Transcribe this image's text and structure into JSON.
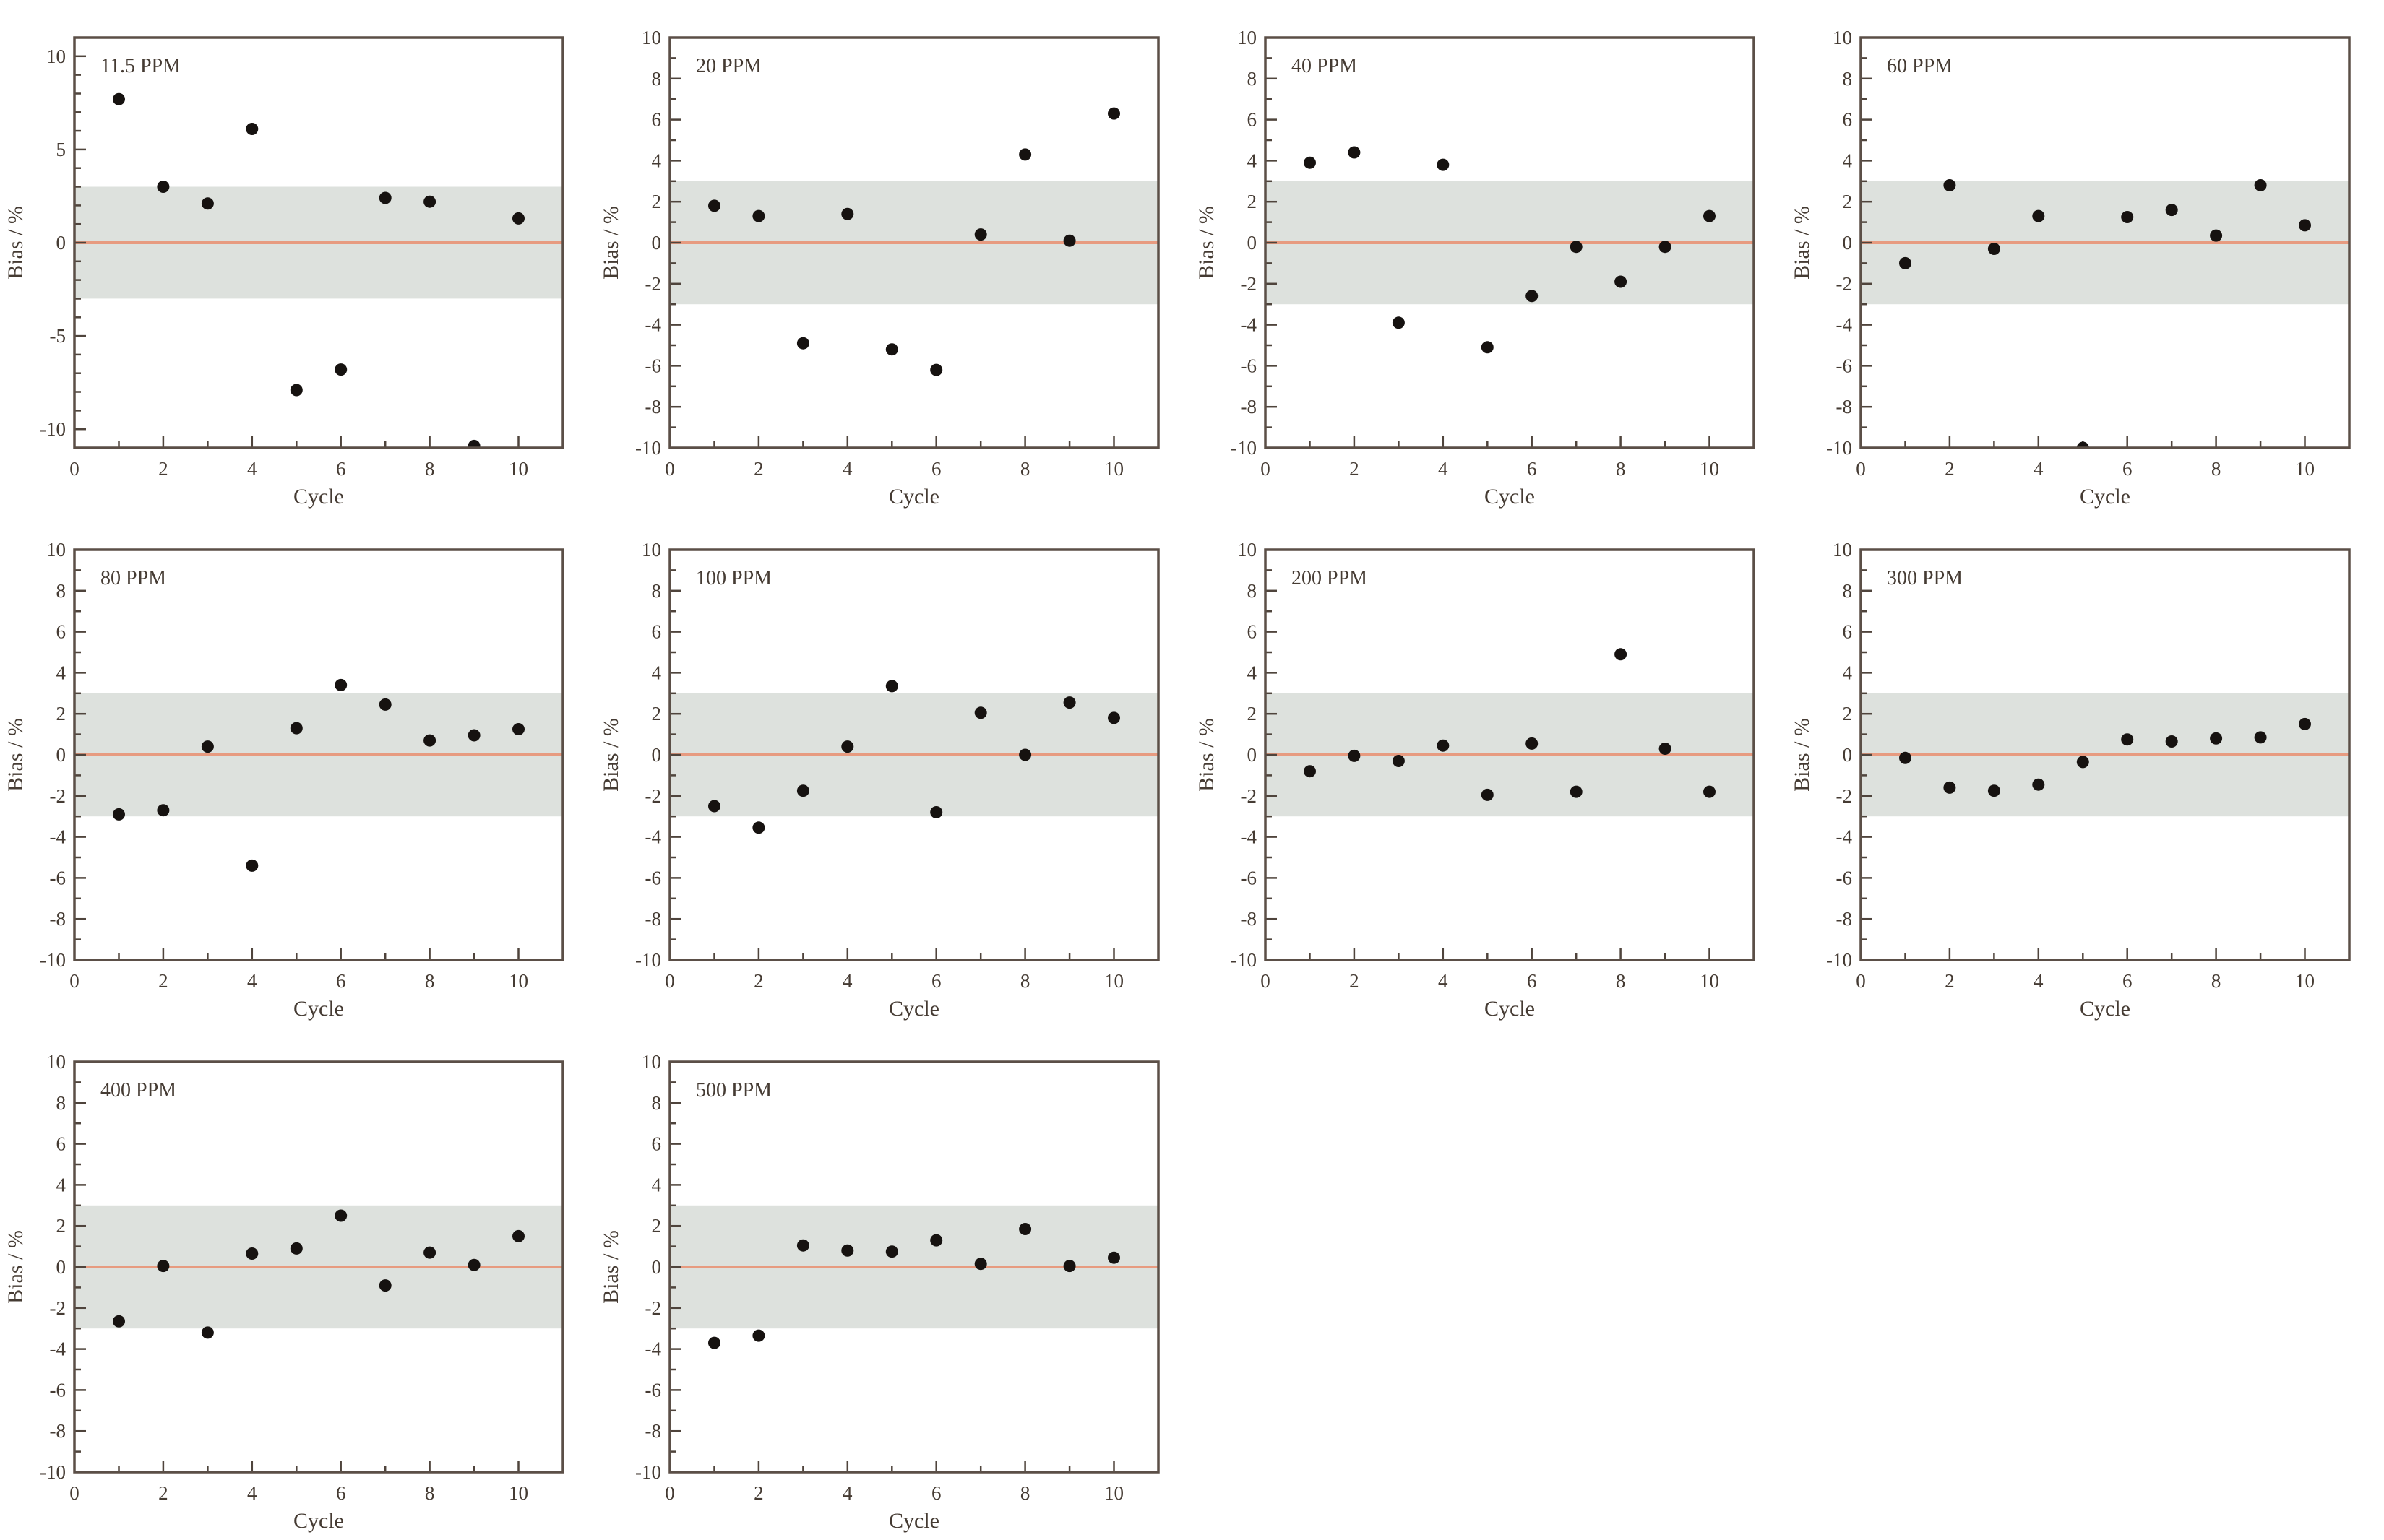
{
  "figure": {
    "name": "bias-vs-cycle-repeatability-figure",
    "xlabel": "Cycle",
    "ylabel": "Bias / %",
    "x_major_ticks": [
      0,
      2,
      4,
      6,
      8,
      10
    ],
    "x_minor_ticks": [
      1,
      3,
      5,
      7,
      9,
      11
    ],
    "xlim": [
      0,
      11
    ]
  },
  "style": {
    "background": "#ffffff",
    "band_color": "#dde1dd",
    "zero_line_color": "#e79b80",
    "point_color": "#161210",
    "frame_color": "#5b4f47",
    "tick_color": "#4f443c",
    "text_color": "#453b33"
  },
  "chart_data": [
    {
      "type": "scatter",
      "title": "11.5 PPM",
      "xlabel": "Cycle",
      "ylabel": "Bias / %",
      "x": [
        1,
        2,
        3,
        4,
        5,
        6,
        7,
        8,
        9,
        10
      ],
      "y": [
        7.7,
        3.0,
        2.1,
        6.1,
        -7.9,
        -6.8,
        2.4,
        2.2,
        -10.9,
        1.3
      ],
      "xlim": [
        0,
        11
      ],
      "ylim": [
        -11,
        11
      ],
      "y_major_ticks": [
        -10,
        -5,
        0,
        5,
        10
      ],
      "y_minor_step": 1,
      "band": [
        -3,
        3
      ],
      "zero_line": 0,
      "legend": "none",
      "grid": "off"
    },
    {
      "type": "scatter",
      "title": "20 PPM",
      "xlabel": "Cycle",
      "ylabel": "Bias / %",
      "x": [
        1,
        2,
        3,
        4,
        5,
        6,
        7,
        8,
        9,
        10
      ],
      "y": [
        1.8,
        1.3,
        -4.9,
        1.4,
        -5.2,
        -6.2,
        0.4,
        4.3,
        0.1,
        6.3
      ],
      "xlim": [
        0,
        11
      ],
      "ylim": [
        -10,
        10
      ],
      "y_major_ticks": [
        -10,
        -8,
        -6,
        -4,
        -2,
        0,
        2,
        4,
        6,
        8,
        10
      ],
      "y_minor_step": 1,
      "band": [
        -3,
        3
      ],
      "zero_line": 0,
      "legend": "none",
      "grid": "off"
    },
    {
      "type": "scatter",
      "title": "40 PPM",
      "xlabel": "Cycle",
      "ylabel": "Bias / %",
      "x": [
        1,
        2,
        3,
        4,
        5,
        6,
        7,
        8,
        9,
        10
      ],
      "y": [
        3.9,
        4.4,
        -3.9,
        3.8,
        -5.1,
        -2.6,
        -0.2,
        -1.9,
        -0.2,
        1.3
      ],
      "xlim": [
        0,
        11
      ],
      "ylim": [
        -10,
        10
      ],
      "y_major_ticks": [
        -10,
        -8,
        -6,
        -4,
        -2,
        0,
        2,
        4,
        6,
        8,
        10
      ],
      "y_minor_step": 1,
      "band": [
        -3,
        3
      ],
      "zero_line": 0,
      "legend": "none",
      "grid": "off"
    },
    {
      "type": "scatter",
      "title": "60 PPM",
      "xlabel": "Cycle",
      "ylabel": "Bias / %",
      "x": [
        1,
        2,
        3,
        4,
        5,
        6,
        7,
        8,
        9,
        10
      ],
      "y": [
        -1.0,
        2.8,
        -0.3,
        1.3,
        -10.0,
        1.25,
        1.6,
        0.35,
        2.8,
        0.85
      ],
      "xlim": [
        0,
        11
      ],
      "ylim": [
        -10,
        10
      ],
      "y_major_ticks": [
        -10,
        -8,
        -6,
        -4,
        -2,
        0,
        2,
        4,
        6,
        8,
        10
      ],
      "y_minor_step": 1,
      "band": [
        -3,
        3
      ],
      "zero_line": 0,
      "legend": "none",
      "grid": "off"
    },
    {
      "type": "scatter",
      "title": "80 PPM",
      "xlabel": "Cycle",
      "ylabel": "Bias / %",
      "x": [
        1,
        2,
        3,
        4,
        5,
        6,
        7,
        8,
        9,
        10
      ],
      "y": [
        -2.9,
        -2.7,
        0.4,
        -5.4,
        1.3,
        3.4,
        2.45,
        0.7,
        0.95,
        1.25
      ],
      "xlim": [
        0,
        11
      ],
      "ylim": [
        -10,
        10
      ],
      "y_major_ticks": [
        -10,
        -8,
        -6,
        -4,
        -2,
        0,
        2,
        4,
        6,
        8,
        10
      ],
      "y_minor_step": 1,
      "band": [
        -3,
        3
      ],
      "zero_line": 0,
      "legend": "none",
      "grid": "off"
    },
    {
      "type": "scatter",
      "title": "100 PPM",
      "xlabel": "Cycle",
      "ylabel": "Bias / %",
      "x": [
        1,
        2,
        3,
        4,
        5,
        6,
        7,
        8,
        9,
        10
      ],
      "y": [
        -2.5,
        -3.55,
        -1.75,
        0.4,
        3.35,
        -2.8,
        2.05,
        0.0,
        2.55,
        1.8
      ],
      "xlim": [
        0,
        11
      ],
      "ylim": [
        -10,
        10
      ],
      "y_major_ticks": [
        -10,
        -8,
        -6,
        -4,
        -2,
        0,
        2,
        4,
        6,
        8,
        10
      ],
      "y_minor_step": 1,
      "band": [
        -3,
        3
      ],
      "zero_line": 0,
      "legend": "none",
      "grid": "off"
    },
    {
      "type": "scatter",
      "title": "200 PPM",
      "xlabel": "Cycle",
      "ylabel": "Bias / %",
      "x": [
        1,
        2,
        3,
        4,
        5,
        6,
        7,
        8,
        9,
        10
      ],
      "y": [
        -0.8,
        -0.05,
        -0.3,
        0.45,
        -1.95,
        0.55,
        -1.8,
        4.9,
        0.3,
        -1.8
      ],
      "xlim": [
        0,
        11
      ],
      "ylim": [
        -10,
        10
      ],
      "y_major_ticks": [
        -10,
        -8,
        -6,
        -4,
        -2,
        0,
        2,
        4,
        6,
        8,
        10
      ],
      "y_minor_step": 1,
      "band": [
        -3,
        3
      ],
      "zero_line": 0,
      "legend": "none",
      "grid": "off"
    },
    {
      "type": "scatter",
      "title": "300 PPM",
      "xlabel": "Cycle",
      "ylabel": "Bias / %",
      "x": [
        1,
        2,
        3,
        4,
        5,
        6,
        7,
        8,
        9,
        10
      ],
      "y": [
        -0.15,
        -1.6,
        -1.75,
        -1.45,
        -0.35,
        0.75,
        0.65,
        0.8,
        0.85,
        1.5
      ],
      "xlim": [
        0,
        11
      ],
      "ylim": [
        -10,
        10
      ],
      "y_major_ticks": [
        -10,
        -8,
        -6,
        -4,
        -2,
        0,
        2,
        4,
        6,
        8,
        10
      ],
      "y_minor_step": 1,
      "band": [
        -3,
        3
      ],
      "zero_line": 0,
      "legend": "none",
      "grid": "off"
    },
    {
      "type": "scatter",
      "title": "400 PPM",
      "xlabel": "Cycle",
      "ylabel": "Bias / %",
      "x": [
        1,
        2,
        3,
        4,
        5,
        6,
        7,
        8,
        9,
        10
      ],
      "y": [
        -2.65,
        0.05,
        -3.2,
        0.65,
        0.9,
        2.5,
        -0.9,
        0.7,
        0.1,
        1.5
      ],
      "xlim": [
        0,
        11
      ],
      "ylim": [
        -10,
        10
      ],
      "y_major_ticks": [
        -10,
        -8,
        -6,
        -4,
        -2,
        0,
        2,
        4,
        6,
        8,
        10
      ],
      "y_minor_step": 1,
      "band": [
        -3,
        3
      ],
      "zero_line": 0,
      "legend": "none",
      "grid": "off"
    },
    {
      "type": "scatter",
      "title": "500 PPM",
      "xlabel": "Cycle",
      "ylabel": "Bias / %",
      "x": [
        1,
        2,
        3,
        4,
        5,
        6,
        7,
        8,
        9,
        10
      ],
      "y": [
        -3.7,
        -3.35,
        1.05,
        0.8,
        0.75,
        1.3,
        0.15,
        1.85,
        0.05,
        0.45
      ],
      "xlim": [
        0,
        11
      ],
      "ylim": [
        -10,
        10
      ],
      "y_major_ticks": [
        -10,
        -8,
        -6,
        -4,
        -2,
        0,
        2,
        4,
        6,
        8,
        10
      ],
      "y_minor_step": 1,
      "band": [
        -3,
        3
      ],
      "zero_line": 0,
      "legend": "none",
      "grid": "off"
    }
  ]
}
